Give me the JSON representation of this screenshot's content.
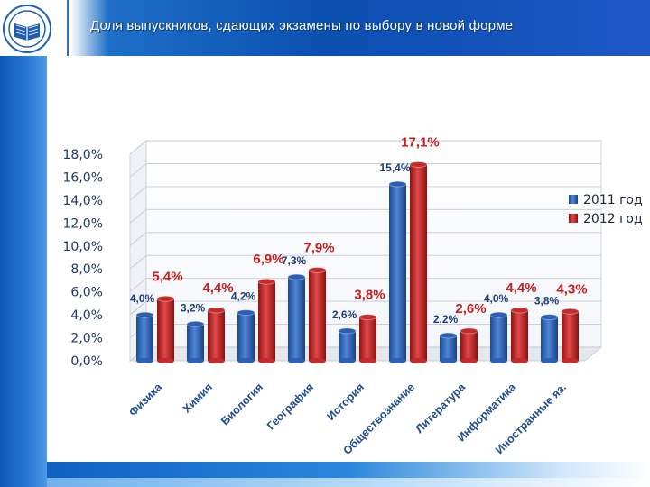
{
  "header": {
    "title": "Доля выпускников, сдающих экзамены по выбору в новой форме"
  },
  "colors": {
    "header_blue": "#0b4fb0",
    "series_2011": "#2a5fb4",
    "series_2012": "#c42b2b",
    "label_2011": "#1f3f7a",
    "label_2012": "#c41e1e"
  },
  "icons": {
    "logo": "emblem-book-icon"
  },
  "chart_data": {
    "type": "bar",
    "title": "",
    "xlabel": "",
    "ylabel": "",
    "ylim": [
      0,
      18
    ],
    "yticks": [
      "0,0%",
      "2,0%",
      "4,0%",
      "6,0%",
      "8,0%",
      "10,0%",
      "12,0%",
      "14,0%",
      "16,0%",
      "18,0%"
    ],
    "grid": true,
    "legend_position": "right",
    "categories": [
      "Физика",
      "Химия",
      "Биология",
      "География",
      "История",
      "Обществознание",
      "Литература",
      "Информатика",
      "Иностранные яз."
    ],
    "series": [
      {
        "name": "2011 год",
        "values": [
          4.0,
          3.2,
          4.2,
          7.3,
          2.6,
          15.4,
          2.2,
          4.0,
          3.8
        ],
        "labels": [
          "4,0%",
          "3,2%",
          "4,2%",
          "7,3%",
          "2,6%",
          "15,4%",
          "2,2%",
          "4,0%",
          "3,8%"
        ]
      },
      {
        "name": "2012 год",
        "values": [
          5.4,
          4.4,
          6.9,
          7.9,
          3.8,
          17.1,
          2.6,
          4.4,
          4.3
        ],
        "labels": [
          "5,4%",
          "4,4%",
          "6,9%",
          "7,9%",
          "3,8%",
          "17,1%",
          "2,6%",
          "4,4%",
          "4,3%"
        ]
      }
    ]
  }
}
